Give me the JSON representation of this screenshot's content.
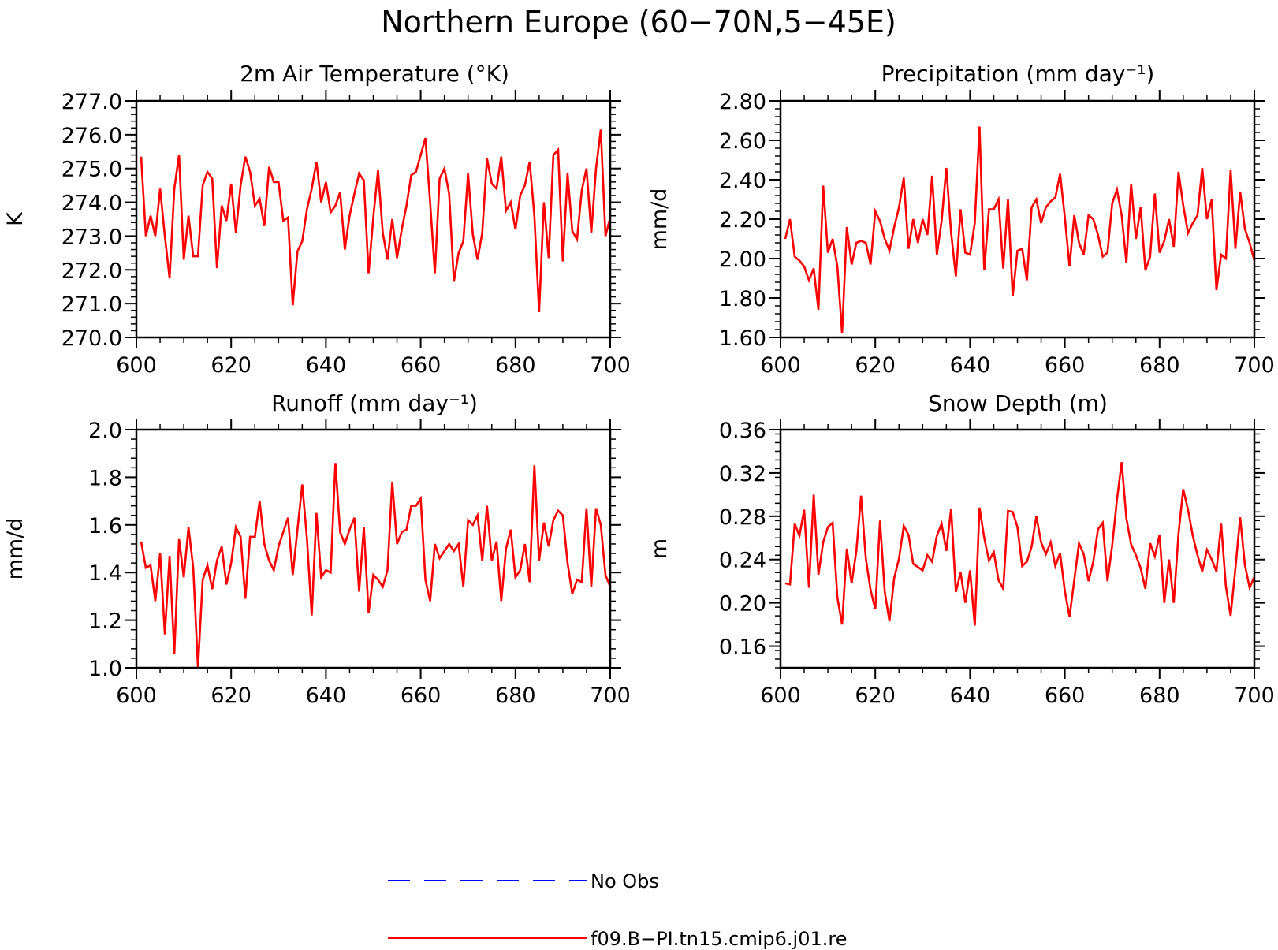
{
  "figure": {
    "title": "Northern Europe (60−70N,5−45E)"
  },
  "legend": [
    {
      "label": "No Obs",
      "color": "#0000ff",
      "dash": "dashed"
    },
    {
      "label": "f09.B−PI.tn15.cmip6.j01.re",
      "color": "#ff0000",
      "dash": "solid"
    }
  ],
  "chart_data": [
    {
      "type": "line",
      "title": "2m Air Temperature (°K)",
      "xlabel": "",
      "ylabel": "K",
      "xlim": [
        600,
        700
      ],
      "ylim": [
        270,
        277
      ],
      "xticks": [
        "600",
        "620",
        "640",
        "660",
        "680",
        "700"
      ],
      "yticks": [
        "270.0",
        "271.0",
        "272.0",
        "273.0",
        "274.0",
        "275.0",
        "276.0",
        "277.0"
      ],
      "grid": false,
      "series": [
        {
          "color": "#ff0000",
          "x_start": 601,
          "values": [
            275.35,
            273.0,
            273.6,
            273.0,
            274.4,
            273.0,
            271.75,
            274.4,
            275.4,
            272.3,
            273.6,
            272.4,
            272.4,
            274.5,
            274.9,
            274.7,
            272.05,
            273.9,
            273.45,
            274.55,
            273.1,
            274.5,
            275.35,
            274.9,
            273.9,
            274.1,
            273.3,
            275.05,
            274.6,
            274.6,
            273.45,
            273.55,
            270.95,
            272.55,
            272.85,
            273.8,
            274.4,
            275.2,
            274.0,
            274.6,
            273.7,
            273.9,
            274.3,
            272.6,
            273.6,
            274.25,
            274.85,
            274.65,
            271.9,
            273.55,
            274.95,
            273.1,
            272.3,
            273.5,
            272.35,
            273.2,
            273.9,
            274.8,
            274.9,
            275.4,
            275.9,
            274.0,
            271.9,
            274.7,
            275.0,
            274.25,
            271.65,
            272.5,
            272.85,
            274.85,
            273.05,
            272.3,
            273.1,
            275.3,
            274.55,
            274.4,
            275.35,
            273.75,
            274.0,
            273.2,
            274.2,
            274.5,
            275.2,
            273.6,
            270.75,
            274.0,
            272.35,
            275.4,
            275.55,
            272.25,
            274.85,
            273.15,
            272.9,
            274.35,
            275.0,
            273.1,
            275.0,
            276.15,
            273.0,
            273.55
          ]
        }
      ]
    },
    {
      "type": "line",
      "title": "Precipitation (mm day⁻¹)",
      "xlabel": "",
      "ylabel": "mm/d",
      "xlim": [
        600,
        700
      ],
      "ylim": [
        1.6,
        2.8
      ],
      "xticks": [
        "600",
        "620",
        "640",
        "660",
        "680",
        "700"
      ],
      "yticks": [
        "1.60",
        "1.80",
        "2.00",
        "2.20",
        "2.40",
        "2.60",
        "2.80"
      ],
      "grid": false,
      "series": [
        {
          "color": "#ff0000",
          "x_start": 601,
          "values": [
            2.1,
            2.2,
            2.01,
            1.99,
            1.96,
            1.89,
            1.95,
            1.74,
            2.37,
            2.03,
            2.1,
            1.96,
            1.62,
            2.16,
            1.97,
            2.08,
            2.09,
            2.08,
            1.97,
            2.24,
            2.19,
            2.1,
            2.04,
            2.16,
            2.26,
            2.41,
            2.05,
            2.2,
            2.08,
            2.2,
            2.12,
            2.42,
            2.02,
            2.19,
            2.46,
            2.13,
            1.91,
            2.25,
            2.03,
            2.02,
            2.18,
            2.67,
            1.94,
            2.25,
            2.25,
            2.3,
            1.95,
            2.3,
            1.81,
            2.04,
            2.05,
            1.89,
            2.26,
            2.3,
            2.18,
            2.26,
            2.29,
            2.31,
            2.43,
            2.21,
            1.96,
            2.22,
            2.08,
            2.02,
            2.22,
            2.2,
            2.12,
            2.01,
            2.03,
            2.28,
            2.35,
            2.22,
            1.98,
            2.38,
            2.1,
            2.26,
            1.94,
            2.01,
            2.33,
            2.03,
            2.09,
            2.2,
            2.06,
            2.44,
            2.27,
            2.13,
            2.18,
            2.22,
            2.46,
            2.2,
            2.3,
            1.84,
            2.02,
            2.0,
            2.45,
            2.05,
            2.34,
            2.15,
            2.08,
            1.99
          ]
        }
      ]
    },
    {
      "type": "line",
      "title": "Runoff (mm day⁻¹)",
      "xlabel": "",
      "ylabel": "mm/d",
      "xlim": [
        600,
        700
      ],
      "ylim": [
        1.0,
        2.0
      ],
      "xticks": [
        "600",
        "620",
        "640",
        "660",
        "680",
        "700"
      ],
      "yticks": [
        "1.0",
        "1.2",
        "1.4",
        "1.6",
        "1.8",
        "2.0"
      ],
      "grid": false,
      "series": [
        {
          "color": "#ff0000",
          "x_start": 601,
          "values": [
            1.53,
            1.42,
            1.43,
            1.28,
            1.48,
            1.14,
            1.47,
            1.06,
            1.54,
            1.38,
            1.59,
            1.42,
            1.0,
            1.37,
            1.43,
            1.33,
            1.45,
            1.51,
            1.35,
            1.44,
            1.59,
            1.55,
            1.29,
            1.55,
            1.55,
            1.7,
            1.52,
            1.45,
            1.41,
            1.51,
            1.57,
            1.63,
            1.39,
            1.58,
            1.77,
            1.54,
            1.22,
            1.65,
            1.38,
            1.41,
            1.4,
            1.86,
            1.57,
            1.52,
            1.58,
            1.63,
            1.32,
            1.59,
            1.23,
            1.39,
            1.37,
            1.34,
            1.41,
            1.78,
            1.52,
            1.57,
            1.58,
            1.68,
            1.68,
            1.71,
            1.37,
            1.28,
            1.52,
            1.46,
            1.49,
            1.52,
            1.49,
            1.52,
            1.34,
            1.62,
            1.6,
            1.64,
            1.45,
            1.68,
            1.45,
            1.53,
            1.28,
            1.5,
            1.58,
            1.38,
            1.41,
            1.52,
            1.36,
            1.85,
            1.45,
            1.61,
            1.51,
            1.62,
            1.66,
            1.64,
            1.44,
            1.31,
            1.37,
            1.36,
            1.67,
            1.34,
            1.67,
            1.6,
            1.39,
            1.34
          ]
        }
      ]
    },
    {
      "type": "line",
      "title": "Snow Depth (m)",
      "xlabel": "",
      "ylabel": "m",
      "xlim": [
        600,
        700
      ],
      "ylim": [
        0.14,
        0.36
      ],
      "xticks": [
        "600",
        "620",
        "640",
        "660",
        "680",
        "700"
      ],
      "yticks": [
        "0.16",
        "0.20",
        "0.24",
        "0.28",
        "0.32",
        "0.36"
      ],
      "grid": false,
      "series": [
        {
          "color": "#ff0000",
          "x_start": 601,
          "values": [
            0.218,
            0.217,
            0.273,
            0.262,
            0.286,
            0.214,
            0.3,
            0.226,
            0.256,
            0.27,
            0.274,
            0.205,
            0.18,
            0.25,
            0.218,
            0.248,
            0.299,
            0.241,
            0.212,
            0.194,
            0.276,
            0.21,
            0.183,
            0.223,
            0.241,
            0.271,
            0.263,
            0.236,
            0.233,
            0.23,
            0.244,
            0.238,
            0.262,
            0.273,
            0.248,
            0.287,
            0.21,
            0.228,
            0.2,
            0.23,
            0.179,
            0.288,
            0.26,
            0.239,
            0.247,
            0.221,
            0.213,
            0.285,
            0.284,
            0.27,
            0.234,
            0.238,
            0.252,
            0.28,
            0.256,
            0.245,
            0.256,
            0.234,
            0.246,
            0.211,
            0.187,
            0.221,
            0.255,
            0.245,
            0.22,
            0.238,
            0.268,
            0.274,
            0.22,
            0.253,
            0.295,
            0.33,
            0.278,
            0.254,
            0.244,
            0.232,
            0.213,
            0.255,
            0.243,
            0.263,
            0.2,
            0.24,
            0.2,
            0.264,
            0.305,
            0.286,
            0.262,
            0.244,
            0.229,
            0.249,
            0.24,
            0.229,
            0.273,
            0.215,
            0.188,
            0.232,
            0.279,
            0.235,
            0.214,
            0.224
          ]
        }
      ]
    }
  ]
}
